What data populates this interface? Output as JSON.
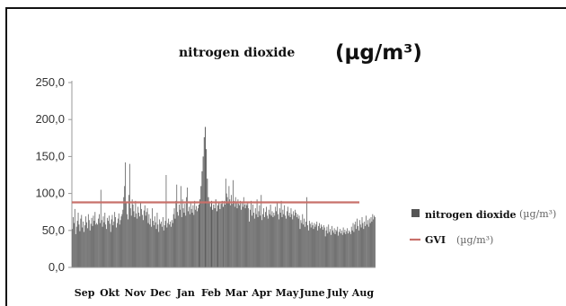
{
  "chart_data": {
    "type": "bar",
    "title": "nitrogen dioxide",
    "unit": "(µg/m³)",
    "ylim": [
      0,
      250
    ],
    "yticks": [
      "0,0",
      "50,0",
      "100,0",
      "150,0",
      "200,0",
      "250,0"
    ],
    "categories": [
      "Sep",
      "Okt",
      "Nov",
      "Dec",
      "Jan",
      "Feb",
      "Mar",
      "Apr",
      "May",
      "June",
      "July",
      "Aug"
    ],
    "series": [
      {
        "name": "nitrogen dioxide",
        "unit": "(µg/m³)",
        "color": "#555555",
        "monthly_daily_values": [
          [
            52,
            68,
            60,
            79,
            45,
            55,
            63,
            74,
            58,
            49,
            66,
            71,
            54,
            62,
            48,
            57,
            69,
            61,
            53,
            72,
            64,
            50,
            59,
            67,
            56,
            70,
            63,
            75,
            58,
            60
          ],
          [
            58,
            66,
            72,
            60,
            105,
            64,
            55,
            69,
            61,
            74,
            58,
            52,
            67,
            63,
            70,
            59,
            48,
            65,
            71,
            57,
            62,
            75,
            68,
            54,
            60,
            66,
            73,
            58,
            64,
            69,
            72
          ],
          [
            78,
            95,
            110,
            142,
            88,
            72,
            65,
            98,
            140,
            80,
            70,
            92,
            85,
            76,
            68,
            90,
            73,
            66,
            82,
            74,
            69,
            88,
            79,
            71,
            64,
            77,
            84,
            70,
            75,
            80
          ],
          [
            60,
            72,
            58,
            66,
            55,
            80,
            63,
            57,
            69,
            61,
            52,
            74,
            58,
            48,
            65,
            59,
            62,
            55,
            68,
            50,
            57,
            63,
            125,
            54,
            60,
            66,
            58,
            62,
            55,
            64,
            60
          ],
          [
            72,
            80,
            66,
            90,
            112,
            75,
            70,
            85,
            78,
            110,
            68,
            92,
            80,
            74,
            86,
            70,
            95,
            108,
            76,
            82,
            72,
            88,
            79,
            74,
            84,
            71,
            90,
            78,
            83,
            76,
            80
          ],
          [
            85,
            92,
            110,
            130,
            150,
            176,
            190,
            160,
            120,
            95,
            88,
            82,
            90,
            78,
            85,
            80,
            92,
            76,
            84,
            88,
            79,
            86,
            90,
            82
          ],
          [
            90,
            85,
            120,
            100,
            95,
            88,
            110,
            92,
            84,
            98,
            86,
            118,
            90,
            82,
            95,
            88,
            80,
            92,
            86,
            84,
            90,
            78,
            88,
            82,
            95,
            85,
            80,
            86,
            84,
            88,
            80
          ],
          [
            62,
            78,
            90,
            70,
            85,
            74,
            66,
            80,
            72,
            92,
            68,
            76,
            84,
            70,
            98,
            64,
            72,
            80,
            68,
            75,
            82,
            70,
            66,
            78,
            72,
            85,
            70,
            76,
            68,
            74
          ],
          [
            70,
            82,
            76,
            88,
            72,
            65,
            80,
            74,
            90,
            68,
            78,
            72,
            84,
            70,
            66,
            76,
            82,
            70,
            74,
            68,
            80,
            72,
            65,
            76,
            70,
            78,
            74,
            68,
            72,
            66,
            70
          ],
          [
            52,
            64,
            60,
            72,
            58,
            66,
            55,
            62,
            95,
            57,
            50,
            63,
            59,
            54,
            61,
            57,
            52,
            60,
            55,
            58,
            62,
            50,
            56,
            60,
            53,
            58,
            55,
            51,
            57,
            54
          ],
          [
            42,
            50,
            55,
            46,
            58,
            48,
            52,
            44,
            56,
            50,
            47,
            53,
            45,
            51,
            49,
            55,
            43,
            48,
            52,
            46,
            50,
            44,
            54,
            47,
            51,
            45,
            49,
            53,
            46,
            50,
            48
          ],
          [
            45,
            55,
            50,
            60,
            48,
            58,
            62,
            52,
            66,
            56,
            50,
            64,
            58,
            54,
            68,
            60,
            52,
            62,
            56,
            70,
            58,
            64,
            55,
            66,
            60,
            68,
            62,
            72,
            65,
            70,
            68
          ]
        ]
      },
      {
        "name": "GVI",
        "unit": "(µg/m³)",
        "color": "#c8706a",
        "value": 88
      }
    ],
    "legend": "right",
    "grid": false
  }
}
